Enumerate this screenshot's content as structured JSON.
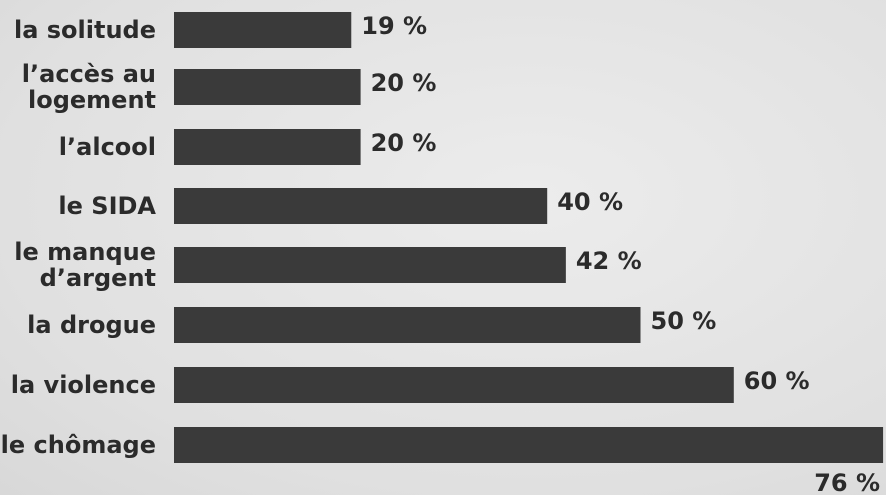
{
  "chart_data": {
    "type": "bar",
    "orientation": "horizontal",
    "categories": [
      [
        "la solitude"
      ],
      [
        "l’accès au",
        "logement"
      ],
      [
        "l’alcool"
      ],
      [
        "le SIDA"
      ],
      [
        "le manque",
        "d’argent"
      ],
      [
        "la drogue"
      ],
      [
        "la violence"
      ],
      [
        "le chômage"
      ]
    ],
    "values": [
      19,
      20,
      20,
      40,
      42,
      50,
      60,
      76
    ],
    "value_labels": [
      "19 %",
      "20 %",
      "20 %",
      "40 %",
      "42 %",
      "50 %",
      "60 %",
      "76 %"
    ],
    "title": "",
    "xlabel": "",
    "ylabel": "",
    "grid": false,
    "legend": "none",
    "colors": {
      "bar": "#3a3a3a",
      "text": "#2b2b2b",
      "background": "#e4e4e4"
    }
  }
}
